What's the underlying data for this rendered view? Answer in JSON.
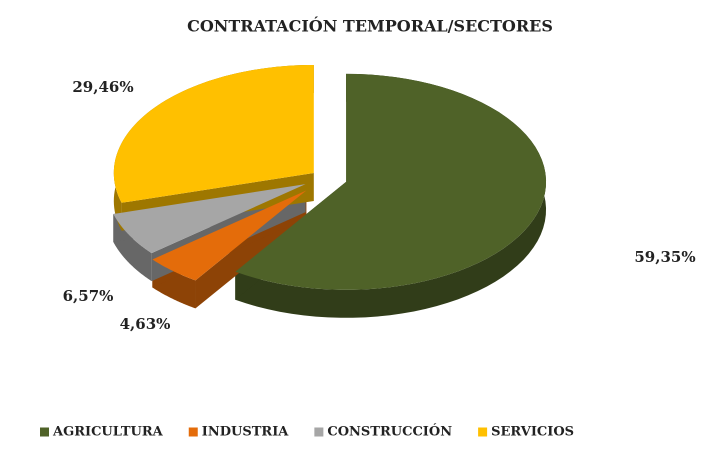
{
  "chart_data": {
    "type": "pie",
    "title": "CONTRATACIÓN TEMPORAL/SECTORES",
    "categories": [
      "AGRICULTURA",
      "INDUSTRIA",
      "CONSTRUCCIÓN",
      "SERVICIOS"
    ],
    "values": [
      59.35,
      4.63,
      6.57,
      29.46
    ],
    "value_labels": [
      "59,35%",
      "4,63%",
      "6,57%",
      "29,46%"
    ],
    "colors": [
      "#4f6228",
      "#e46c0a",
      "#a6a6a6",
      "#ffc000"
    ],
    "legend": "bottom"
  }
}
